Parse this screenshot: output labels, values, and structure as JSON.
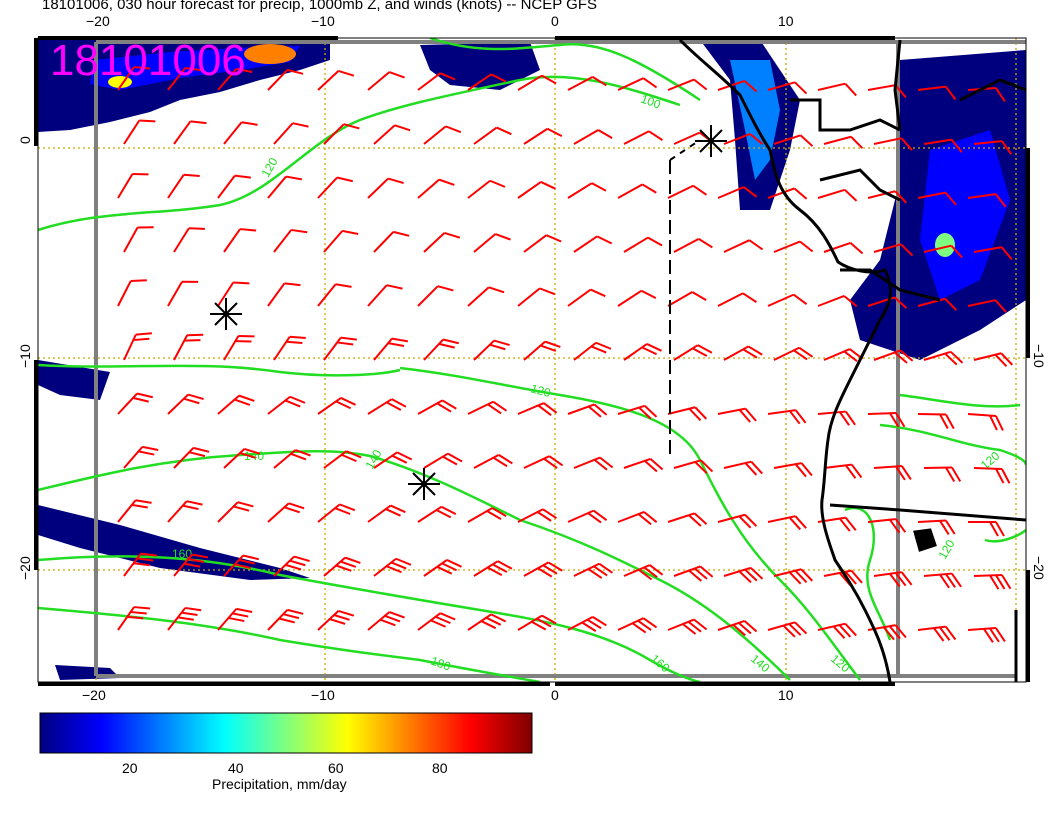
{
  "title": "18101006, 030 hour forecast for precip, 1000mb Z, and winds (knots) -- NCEP GFS",
  "stamp": "18101006",
  "colors": {
    "wind_barb": "#ff0000",
    "height_contour": "#22dd22",
    "coastline": "#000000",
    "grid": "#ccaa00",
    "frame_gray": "#808080"
  },
  "axes": {
    "lon_ticks": [
      {
        "value": -20,
        "label": "−20"
      },
      {
        "value": -10,
        "label": "−10"
      },
      {
        "value": 0,
        "label": "0"
      },
      {
        "value": 10,
        "label": "10"
      }
    ],
    "lat_ticks": [
      {
        "value": 0,
        "label": "0"
      },
      {
        "value": -10,
        "label": "−10"
      },
      {
        "value": -20,
        "label": "−20"
      }
    ]
  },
  "contours": [
    {
      "label": "100",
      "value": 100
    },
    {
      "label": "120",
      "value": 120
    },
    {
      "label": "140",
      "value": 140
    },
    {
      "label": "160",
      "value": 160
    },
    {
      "label": "180",
      "value": 180
    }
  ],
  "colorbar": {
    "label": "Precipitation, mm/day",
    "ticks": [
      {
        "value": 20,
        "label": "20"
      },
      {
        "value": 40,
        "label": "40"
      },
      {
        "value": 60,
        "label": "60"
      },
      {
        "value": 80,
        "label": "80"
      }
    ],
    "colors": [
      "#00007f",
      "#0000ff",
      "#007fff",
      "#00ffff",
      "#7fff7f",
      "#ffff00",
      "#ff7f00",
      "#ff0000",
      "#7f0000"
    ]
  }
}
